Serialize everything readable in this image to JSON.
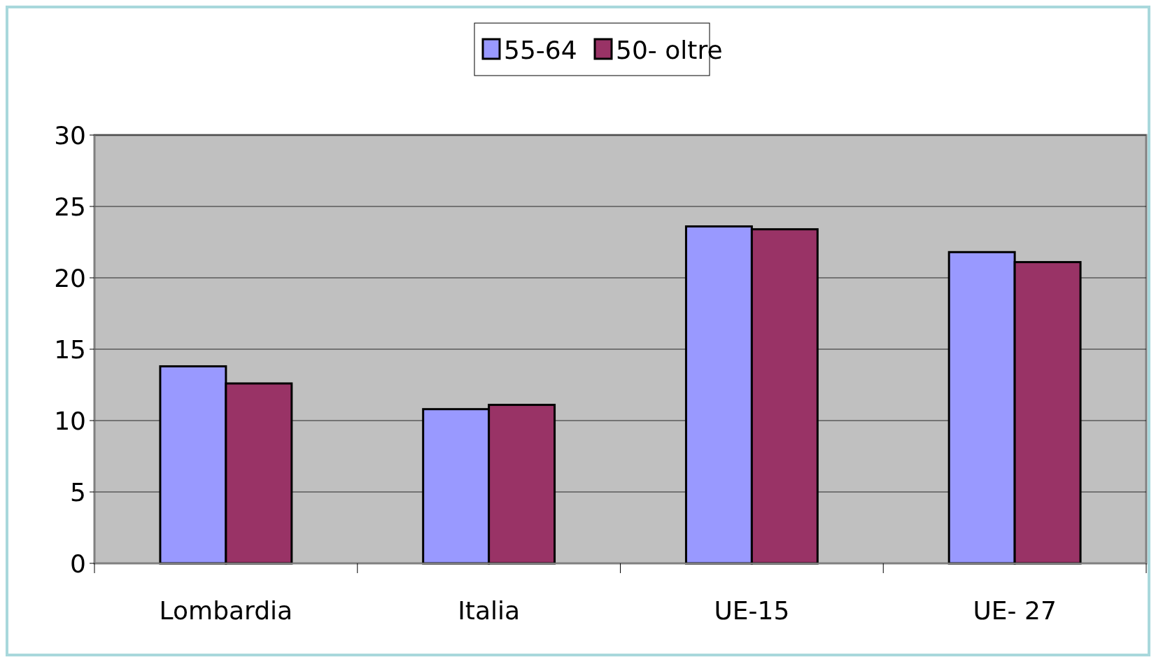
{
  "chart_data": {
    "type": "bar",
    "categories": [
      "Lombardia",
      "Italia",
      "UE-15",
      "UE- 27"
    ],
    "series": [
      {
        "name": "55-64",
        "color": "#9999ff",
        "values": [
          13.8,
          10.8,
          23.6,
          21.8
        ]
      },
      {
        "name": "50- oltre",
        "color": "#993366",
        "values": [
          12.6,
          11.1,
          23.4,
          21.1
        ]
      }
    ],
    "ylim": [
      0,
      30
    ],
    "yticks": [
      0,
      5,
      10,
      15,
      20,
      25,
      30
    ],
    "grid": "y",
    "legend": "top"
  }
}
